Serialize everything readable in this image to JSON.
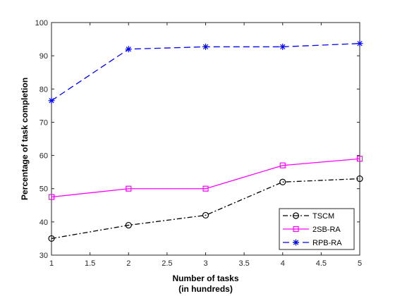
{
  "chart_data": {
    "type": "line",
    "x": [
      1,
      2,
      3,
      4,
      5
    ],
    "xlim": [
      1,
      5
    ],
    "ylim": [
      30,
      100
    ],
    "xticks": [
      "1",
      "1.5",
      "2",
      "2.5",
      "3",
      "3.5",
      "4",
      "4.5",
      "5"
    ],
    "yticks": [
      "30",
      "40",
      "50",
      "60",
      "70",
      "80",
      "90",
      "100"
    ],
    "xlabel_line1": "Number of tasks",
    "xlabel_line2": "(in hundreds)",
    "ylabel": "Percentage of task completion",
    "grid": false,
    "legend_position": "bottom-right",
    "series": [
      {
        "name": "TSCM",
        "values": [
          35,
          39,
          42,
          52,
          53
        ],
        "color": "#000000",
        "line": "dash-dot",
        "marker": "circle"
      },
      {
        "name": "2SB-RA",
        "values": [
          47.5,
          50,
          50,
          57,
          59
        ],
        "color": "#ff00ff",
        "line": "solid",
        "marker": "square"
      },
      {
        "name": "RPB-RA",
        "values": [
          76.5,
          92,
          92.7,
          92.7,
          93.7
        ],
        "color": "#0000ff",
        "line": "dashed",
        "marker": "asterisk"
      }
    ]
  }
}
